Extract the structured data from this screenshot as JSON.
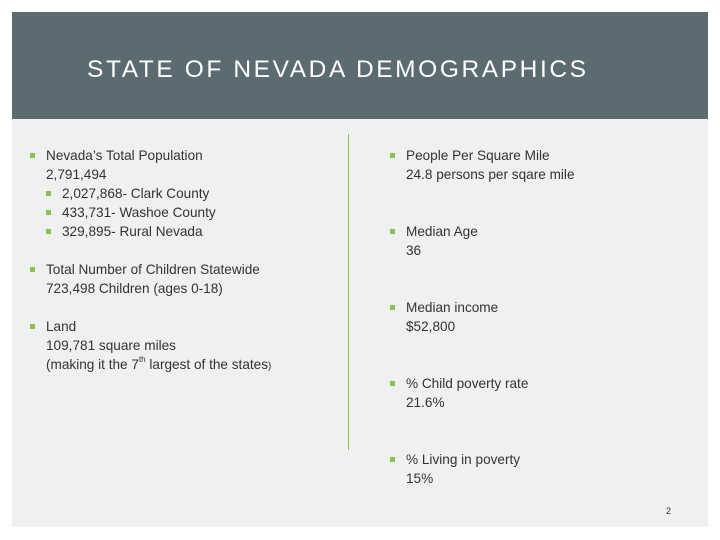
{
  "title": "STATE OF NEVADA DEMOGRAPHICS",
  "left": {
    "population": {
      "heading": "Nevada’s Total Population",
      "value": "2,791,494",
      "subitems": [
        "2,027,868- Clark County",
        "433,731- Washoe County",
        "329,895- Rural Nevada"
      ]
    },
    "children": {
      "heading": "Total Number of Children Statewide",
      "value": "723,498 Children (ages 0-18)"
    },
    "land": {
      "heading": "Land",
      "value": "109,781 square miles",
      "note_before": "(making it the 7",
      "note_sup": "th",
      "note_after": " largest of the states",
      "note_paren": ")"
    }
  },
  "right": [
    {
      "heading": "People Per Square Mile",
      "value": "24.8 persons per sqare mile"
    },
    {
      "heading": "Median Age",
      "value": "36"
    },
    {
      "heading": "Median income",
      "value": "$52,800"
    },
    {
      "heading": "% Child poverty rate",
      "value": "21.6%"
    },
    {
      "heading": "% Living in poverty",
      "value": "15%"
    }
  ],
  "page_number": "2",
  "colors": {
    "header_bg": "#5c6b72",
    "slide_bg": "#eff0f0",
    "accent": "#8fc04f",
    "text": "#333333"
  }
}
